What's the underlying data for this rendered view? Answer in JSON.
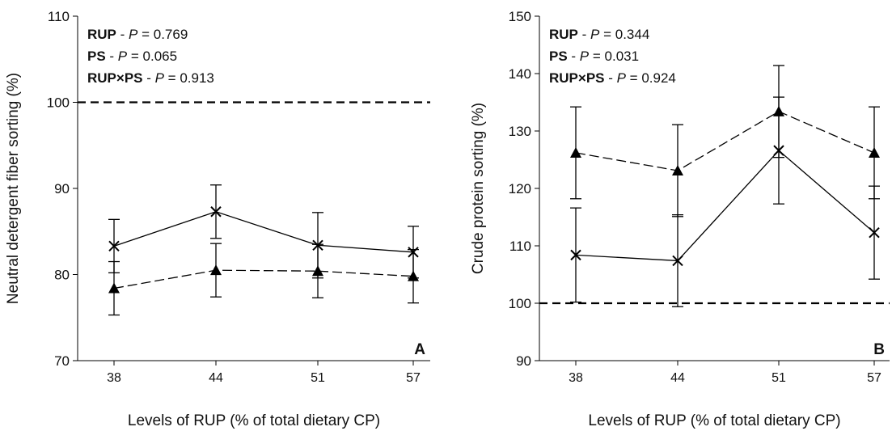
{
  "chart_data": [
    {
      "type": "line",
      "panel": "A",
      "x_label": "Levels of RUP (% of total dietary CP)",
      "y_label": "Neutral detergent fiber sorting (%)",
      "categories": [
        "38",
        "44",
        "51",
        "57"
      ],
      "ylim": [
        70,
        110
      ],
      "yticks": [
        70,
        80,
        90,
        100,
        110
      ],
      "reference_line": 100,
      "annotations": [
        [
          {
            "text": "RUP",
            "style": "bold"
          },
          {
            "text": " - "
          },
          {
            "text": "P",
            "style": "italic"
          },
          {
            "text": " = 0.769"
          }
        ],
        [
          {
            "text": "PS",
            "style": "bold"
          },
          {
            "text": " - "
          },
          {
            "text": "P",
            "style": "italic"
          },
          {
            "text": " = 0.065"
          }
        ],
        [
          {
            "text": "RUP×PS",
            "style": "bold"
          },
          {
            "text": " - "
          },
          {
            "text": "P",
            "style": "italic"
          },
          {
            "text": " = 0.913"
          }
        ]
      ],
      "series": [
        {
          "color": "#000000",
          "marker": "x",
          "dashed": false,
          "values": [
            83.3,
            87.3,
            83.4,
            82.6
          ],
          "errors": [
            3.1,
            3.1,
            3.8,
            3.0
          ]
        },
        {
          "color": "#000000",
          "marker": "triangle",
          "dashed": true,
          "values": [
            78.4,
            80.5,
            80.4,
            79.8
          ],
          "errors": [
            3.1,
            3.1,
            3.1,
            3.1
          ]
        }
      ]
    },
    {
      "type": "line",
      "panel": "B",
      "x_label": "Levels of RUP (% of total dietary CP)",
      "y_label": "Crude protein sorting (%)",
      "categories": [
        "38",
        "44",
        "51",
        "57"
      ],
      "ylim": [
        90,
        150
      ],
      "yticks": [
        90,
        100,
        110,
        120,
        130,
        140,
        150
      ],
      "reference_line": 100,
      "annotations": [
        [
          {
            "text": "RUP",
            "style": "bold"
          },
          {
            "text": " - "
          },
          {
            "text": "P",
            "style": "italic"
          },
          {
            "text": " = 0.344"
          }
        ],
        [
          {
            "text": "PS",
            "style": "bold"
          },
          {
            "text": " - "
          },
          {
            "text": "P",
            "style": "italic"
          },
          {
            "text": " = 0.031"
          }
        ],
        [
          {
            "text": "RUP×PS",
            "style": "bold"
          },
          {
            "text": " - "
          },
          {
            "text": "P",
            "style": "italic"
          },
          {
            "text": " = 0.924"
          }
        ]
      ],
      "series": [
        {
          "color": "#000000",
          "marker": "x",
          "dashed": false,
          "values": [
            108.4,
            107.4,
            126.6,
            112.3
          ],
          "errors": [
            8.2,
            8.0,
            9.3,
            8.1
          ]
        },
        {
          "color": "#000000",
          "marker": "triangle",
          "dashed": true,
          "values": [
            126.2,
            123.1,
            133.4,
            126.2
          ],
          "errors": [
            8.0,
            8.0,
            8.0,
            8.0
          ]
        }
      ]
    }
  ]
}
